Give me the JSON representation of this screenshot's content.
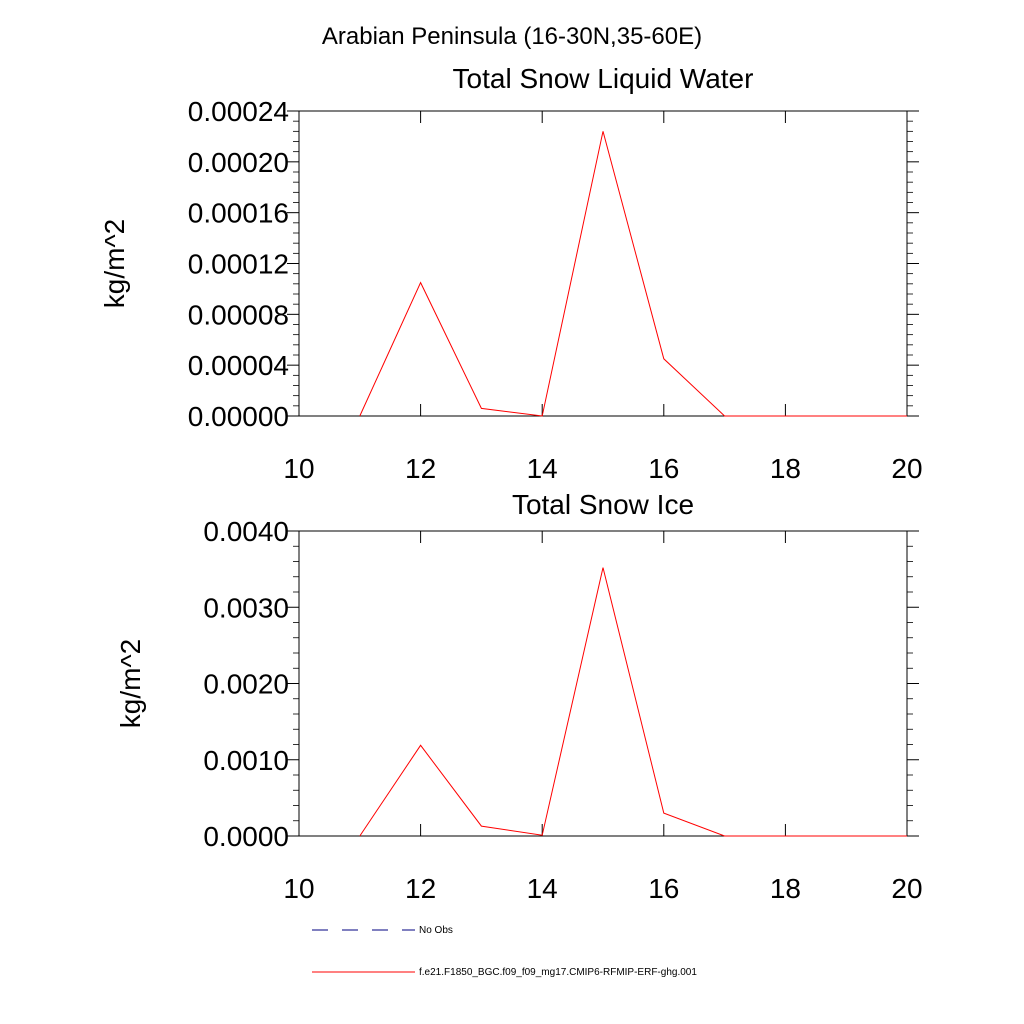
{
  "main_title": "Arabian Peninsula (16-30N,35-60E)",
  "chart_data": [
    {
      "type": "line",
      "title": "Total Snow Liquid Water",
      "xlabel": "",
      "ylabel": "kg/m^2",
      "xlim": [
        10,
        20
      ],
      "ylim": [
        0,
        0.00024
      ],
      "xticks": [
        10,
        12,
        14,
        16,
        18,
        20
      ],
      "xtick_labels": [
        "10",
        "12",
        "14",
        "16",
        "18",
        "20"
      ],
      "yticks": [
        0,
        4e-05,
        8e-05,
        0.00012,
        0.00016,
        0.0002,
        0.00024
      ],
      "ytick_labels": [
        "0.00000",
        "0.00004",
        "0.00008",
        "0.00012",
        "0.00016",
        "0.00020",
        "0.00024"
      ],
      "grid": false,
      "series": [
        {
          "color": "#ff0000",
          "x": [
            11,
            12,
            13,
            14,
            15,
            16,
            17,
            18,
            19,
            20
          ],
          "values": [
            0,
            0.000105,
            6e-06,
            0,
            0.000224,
            4.5e-05,
            0,
            0,
            0,
            0
          ]
        }
      ]
    },
    {
      "type": "line",
      "title": "Total Snow Ice",
      "xlabel": "",
      "ylabel": "kg/m^2",
      "xlim": [
        10,
        20
      ],
      "ylim": [
        0,
        0.004
      ],
      "xticks": [
        10,
        12,
        14,
        16,
        18,
        20
      ],
      "xtick_labels": [
        "10",
        "12",
        "14",
        "16",
        "18",
        "20"
      ],
      "yticks": [
        0,
        0.001,
        0.002,
        0.003,
        0.004
      ],
      "ytick_labels": [
        "0.0000",
        "0.0010",
        "0.0020",
        "0.0030",
        "0.0040"
      ],
      "grid": false,
      "series": [
        {
          "color": "#ff0000",
          "x": [
            11,
            12,
            13,
            14,
            15,
            16,
            17,
            18,
            19,
            20
          ],
          "values": [
            0,
            0.00119,
            0.00013,
            1e-05,
            0.00352,
            0.0003,
            0,
            0,
            0,
            0
          ]
        }
      ]
    }
  ],
  "legend": {
    "placement": "bottom",
    "entries": [
      {
        "label": "No Obs",
        "color": "#000080",
        "style": "dashed"
      },
      {
        "label": "f.e21.F1850_BGC.f09_f09_mg17.CMIP6-RFMIP-ERF-ghg.001",
        "color": "#ff0000",
        "style": "solid"
      }
    ]
  }
}
